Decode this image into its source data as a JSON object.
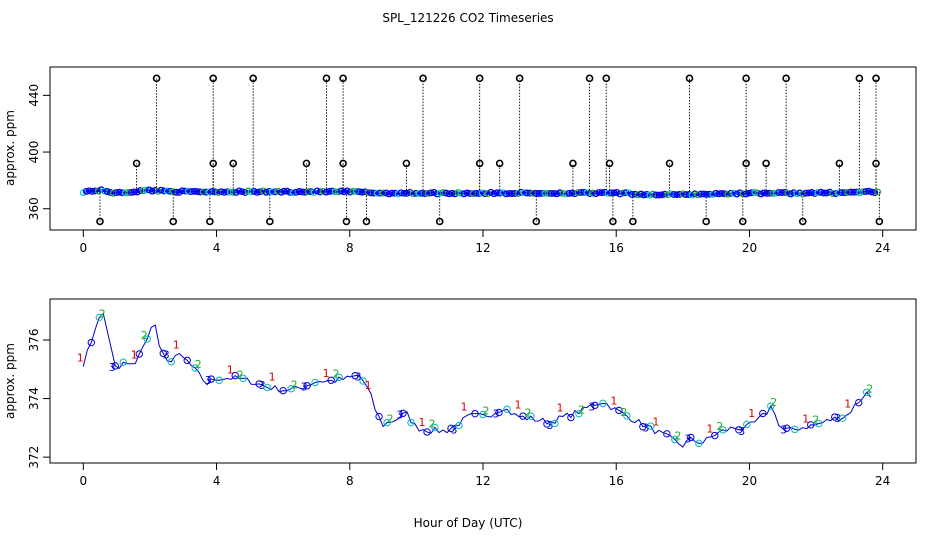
{
  "title": "SPL_121226  CO2 Timeseries",
  "xlabel": "Hour of Day (UTC)",
  "chart_data": [
    {
      "type": "scatter",
      "name": "full-range",
      "ylabel": "approx. ppm",
      "xlim": [
        -1,
        25
      ],
      "ylim": [
        345,
        460
      ],
      "xticks": [
        0,
        4,
        8,
        12,
        16,
        20,
        24
      ],
      "yticks": [
        360,
        400,
        440
      ],
      "baseline": [
        [
          0,
          372
        ],
        [
          0.5,
          373
        ],
        [
          1,
          371
        ],
        [
          2,
          373
        ],
        [
          3,
          372
        ],
        [
          4,
          372
        ],
        [
          6,
          372
        ],
        [
          8,
          372
        ],
        [
          9,
          371
        ],
        [
          10,
          371
        ],
        [
          12,
          371
        ],
        [
          14,
          371
        ],
        [
          16,
          371
        ],
        [
          17,
          370
        ],
        [
          18,
          370
        ],
        [
          20,
          371
        ],
        [
          22,
          371
        ],
        [
          24,
          372
        ]
      ],
      "high_outliers": [
        [
          2.2,
          452
        ],
        [
          3.9,
          452
        ],
        [
          5.1,
          452
        ],
        [
          7.3,
          452
        ],
        [
          7.8,
          452
        ],
        [
          10.2,
          452
        ],
        [
          11.9,
          452
        ],
        [
          13.1,
          452
        ],
        [
          15.2,
          452
        ],
        [
          15.7,
          452
        ],
        [
          18.2,
          452
        ],
        [
          19.9,
          452
        ],
        [
          21.1,
          452
        ],
        [
          23.3,
          452
        ],
        [
          23.8,
          452
        ],
        [
          1.6,
          392
        ],
        [
          3.9,
          392
        ],
        [
          4.5,
          392
        ],
        [
          6.7,
          392
        ],
        [
          7.8,
          392
        ],
        [
          9.7,
          392
        ],
        [
          11.9,
          392
        ],
        [
          12.5,
          392
        ],
        [
          14.7,
          392
        ],
        [
          15.8,
          392
        ],
        [
          17.6,
          392
        ],
        [
          19.9,
          392
        ],
        [
          20.5,
          392
        ],
        [
          22.7,
          392
        ],
        [
          23.8,
          392
        ]
      ],
      "low_outliers": [
        [
          0.5,
          351
        ],
        [
          2.7,
          351
        ],
        [
          3.8,
          351
        ],
        [
          5.6,
          351
        ],
        [
          7.9,
          351
        ],
        [
          8.5,
          351
        ],
        [
          10.7,
          351
        ],
        [
          13.6,
          351
        ],
        [
          15.9,
          351
        ],
        [
          16.5,
          351
        ],
        [
          18.7,
          351
        ],
        [
          19.8,
          351
        ],
        [
          21.6,
          351
        ],
        [
          23.9,
          351
        ]
      ]
    },
    {
      "type": "scatter",
      "name": "zoomed",
      "ylabel": "approx. ppm",
      "xlim": [
        -1,
        25
      ],
      "ylim": [
        371.8,
        377.4
      ],
      "xticks": [
        0,
        4,
        8,
        12,
        16,
        20,
        24
      ],
      "yticks": [
        372,
        374,
        376
      ],
      "series_labels": [
        "1",
        "2",
        "3"
      ],
      "series": [
        [
          0,
          375.2
        ],
        [
          0.2,
          375.8
        ],
        [
          0.4,
          376.6
        ],
        [
          0.6,
          376.9
        ],
        [
          0.75,
          376.2
        ],
        [
          0.9,
          375.3
        ],
        [
          1.0,
          374.9
        ],
        [
          1.2,
          375.2
        ],
        [
          1.5,
          375.1
        ],
        [
          1.7,
          375.6
        ],
        [
          1.9,
          375.9
        ],
        [
          2.1,
          376.8
        ],
        [
          2.3,
          375.7
        ],
        [
          2.5,
          375.2
        ],
        [
          2.8,
          375.5
        ],
        [
          3.1,
          375.3
        ],
        [
          3.4,
          374.9
        ],
        [
          3.7,
          374.5
        ],
        [
          4.0,
          374.7
        ],
        [
          4.5,
          374.7
        ],
        [
          5.0,
          374.6
        ],
        [
          5.5,
          374.4
        ],
        [
          6.0,
          374.3
        ],
        [
          6.3,
          374.3
        ],
        [
          6.6,
          374.4
        ],
        [
          7.0,
          374.6
        ],
        [
          7.5,
          374.6
        ],
        [
          8.0,
          374.7
        ],
        [
          8.3,
          374.8
        ],
        [
          8.6,
          374.2
        ],
        [
          8.8,
          373.5
        ],
        [
          9.0,
          373.1
        ],
        [
          9.4,
          373.3
        ],
        [
          9.7,
          373.5
        ],
        [
          10.0,
          373.0
        ],
        [
          10.5,
          372.9
        ],
        [
          10.9,
          372.9
        ],
        [
          11.2,
          373.1
        ],
        [
          11.6,
          373.4
        ],
        [
          12.0,
          373.4
        ],
        [
          12.3,
          373.5
        ],
        [
          12.6,
          373.7
        ],
        [
          13.0,
          373.4
        ],
        [
          13.5,
          373.3
        ],
        [
          14.0,
          373.2
        ],
        [
          14.5,
          373.4
        ],
        [
          15.0,
          373.6
        ],
        [
          15.3,
          373.8
        ],
        [
          15.6,
          373.9
        ],
        [
          16.0,
          373.6
        ],
        [
          16.5,
          373.3
        ],
        [
          17.0,
          373.0
        ],
        [
          17.5,
          372.7
        ],
        [
          18.0,
          372.4
        ],
        [
          18.2,
          372.6
        ],
        [
          18.6,
          372.5
        ],
        [
          19.0,
          372.8
        ],
        [
          19.5,
          373.0
        ],
        [
          19.9,
          373.0
        ],
        [
          20.2,
          373.2
        ],
        [
          20.5,
          373.5
        ],
        [
          20.7,
          373.8
        ],
        [
          20.9,
          373.0
        ],
        [
          21.2,
          372.9
        ],
        [
          21.5,
          373.0
        ],
        [
          22.0,
          373.1
        ],
        [
          22.5,
          373.3
        ],
        [
          22.9,
          373.4
        ],
        [
          23.2,
          373.8
        ],
        [
          23.5,
          374.2
        ],
        [
          23.7,
          374.0
        ]
      ]
    }
  ]
}
